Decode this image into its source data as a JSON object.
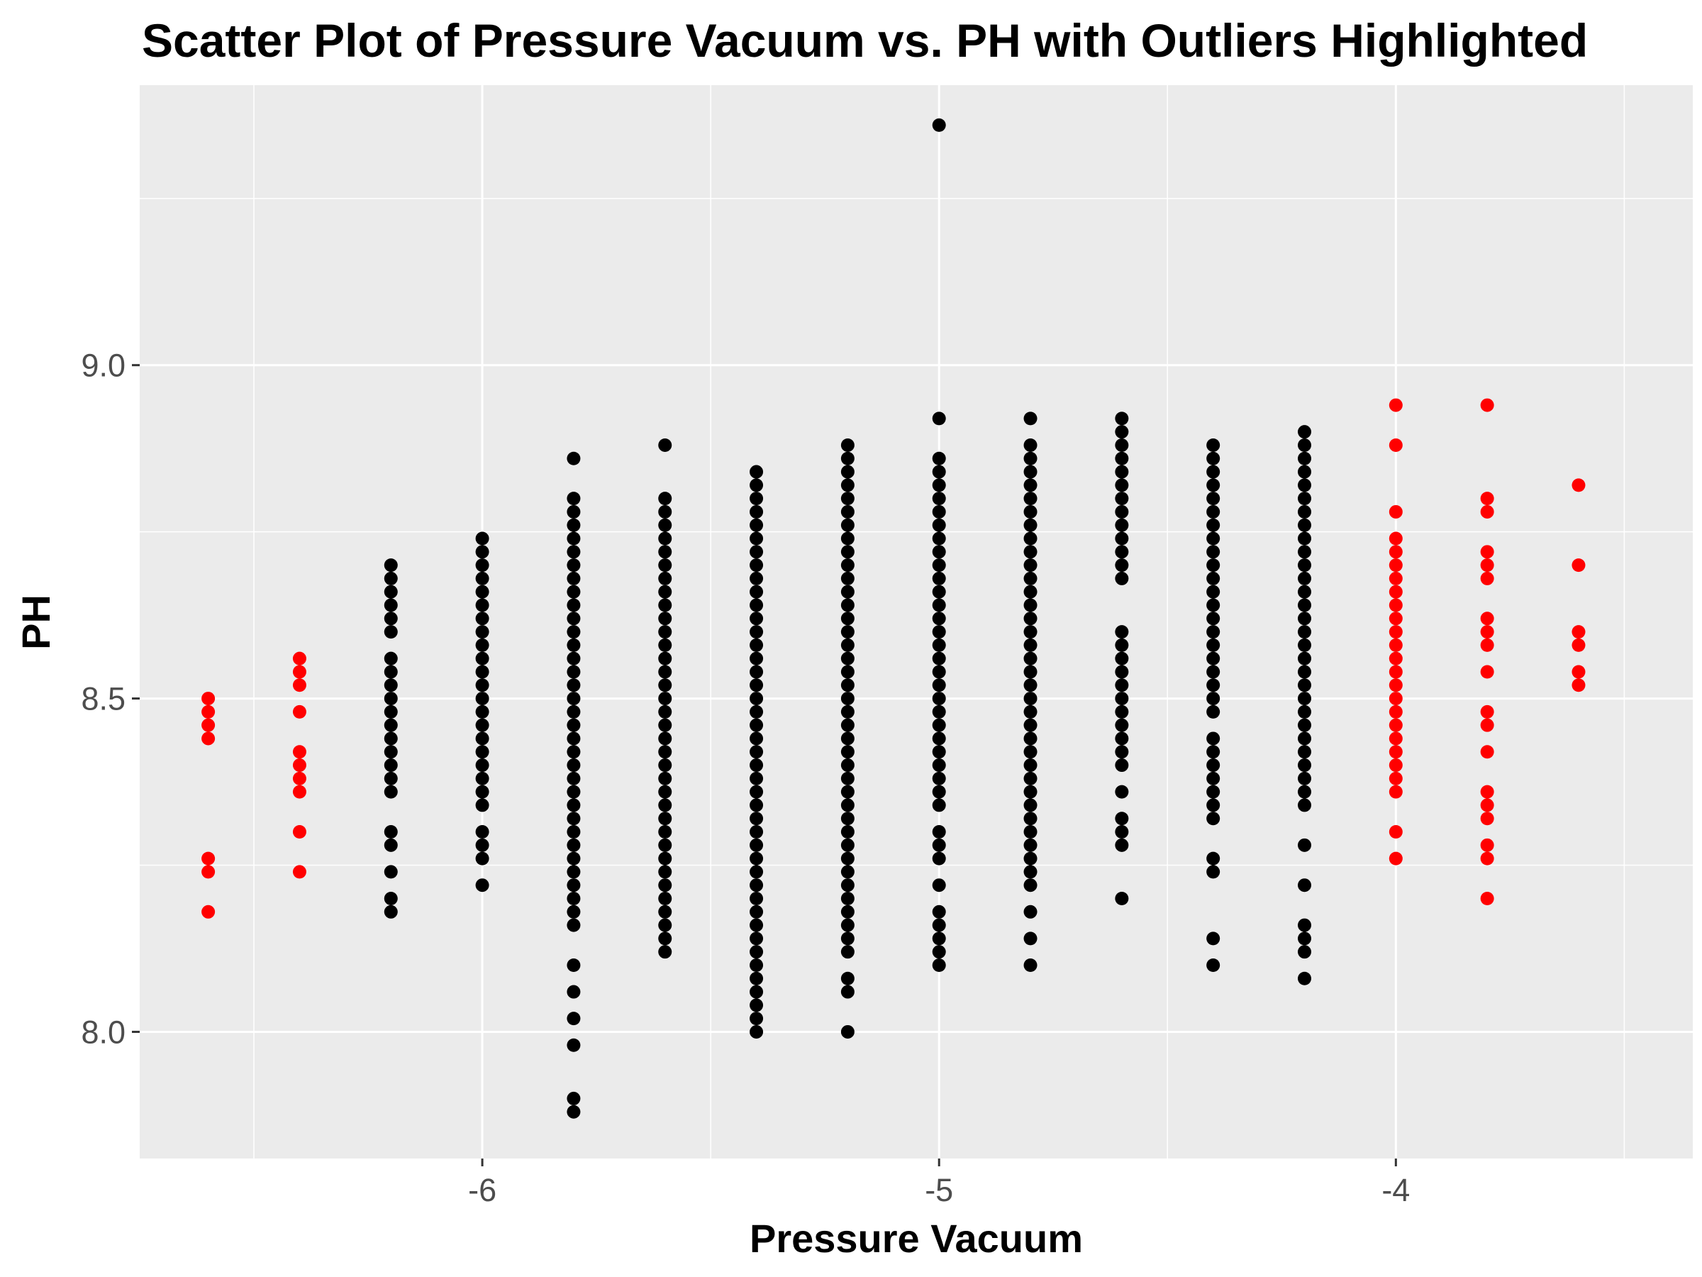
{
  "colors": {
    "panel": "#ebebeb",
    "grid": "#ffffff",
    "normal": "#000000",
    "outlier": "#ff0000",
    "tick": "#333333"
  },
  "chart_data": {
    "type": "scatter",
    "title": "Scatter Plot of Pressure Vacuum vs. PH with Outliers Highlighted",
    "xlabel": "Pressure Vacuum",
    "ylabel": "PH",
    "xlim": [
      -6.75,
      -3.35
    ],
    "ylim": [
      7.81,
      9.42
    ],
    "grid": true,
    "legend": "none",
    "x_ticks": [
      -6,
      -5,
      -4
    ],
    "x_tick_labels": [
      "-6",
      "-5",
      "-4"
    ],
    "y_ticks": [
      8.0,
      8.5,
      9.0
    ],
    "y_tick_labels": [
      "8.0",
      "8.5",
      "9.0"
    ],
    "series": [
      {
        "name": "",
        "outlier": false,
        "columns": [
          {
            "x": -6.2,
            "y": [
              8.18,
              8.2,
              8.24,
              8.28,
              8.3,
              8.36,
              8.38,
              8.4,
              8.42,
              8.44,
              8.46,
              8.48,
              8.5,
              8.52,
              8.54,
              8.56,
              8.6,
              8.62,
              8.64,
              8.66,
              8.68,
              8.7
            ]
          },
          {
            "x": -6.0,
            "y": [
              8.22,
              8.26,
              8.28,
              8.3,
              8.34,
              8.36,
              8.38,
              8.4,
              8.42,
              8.44,
              8.46,
              8.48,
              8.5,
              8.52,
              8.54,
              8.56,
              8.58,
              8.6,
              8.62,
              8.64,
              8.66,
              8.68,
              8.7,
              8.72,
              8.74
            ]
          },
          {
            "x": -5.8,
            "y": [
              7.88,
              7.9,
              7.98,
              8.02,
              8.06,
              8.1,
              8.16,
              8.18,
              8.2,
              8.22,
              8.24,
              8.26,
              8.28,
              8.3,
              8.32,
              8.34,
              8.36,
              8.38,
              8.4,
              8.42,
              8.44,
              8.46,
              8.48,
              8.5,
              8.52,
              8.54,
              8.56,
              8.58,
              8.6,
              8.62,
              8.64,
              8.66,
              8.68,
              8.7,
              8.72,
              8.74,
              8.76,
              8.78,
              8.8,
              8.86
            ]
          },
          {
            "x": -5.6,
            "y": [
              8.12,
              8.14,
              8.16,
              8.18,
              8.2,
              8.22,
              8.24,
              8.26,
              8.28,
              8.3,
              8.32,
              8.34,
              8.36,
              8.38,
              8.4,
              8.42,
              8.44,
              8.46,
              8.48,
              8.5,
              8.52,
              8.54,
              8.56,
              8.58,
              8.6,
              8.62,
              8.64,
              8.66,
              8.68,
              8.7,
              8.72,
              8.74,
              8.76,
              8.78,
              8.8,
              8.88
            ]
          },
          {
            "x": -5.4,
            "y": [
              8.0,
              8.02,
              8.04,
              8.06,
              8.08,
              8.1,
              8.12,
              8.14,
              8.16,
              8.18,
              8.2,
              8.22,
              8.24,
              8.26,
              8.28,
              8.3,
              8.32,
              8.34,
              8.36,
              8.38,
              8.4,
              8.42,
              8.44,
              8.46,
              8.48,
              8.5,
              8.52,
              8.54,
              8.56,
              8.58,
              8.6,
              8.62,
              8.64,
              8.66,
              8.68,
              8.7,
              8.72,
              8.74,
              8.76,
              8.78,
              8.8,
              8.82,
              8.84
            ]
          },
          {
            "x": -5.2,
            "y": [
              8.0,
              8.06,
              8.08,
              8.12,
              8.14,
              8.16,
              8.18,
              8.2,
              8.22,
              8.24,
              8.26,
              8.28,
              8.3,
              8.32,
              8.34,
              8.36,
              8.38,
              8.4,
              8.42,
              8.44,
              8.46,
              8.48,
              8.5,
              8.52,
              8.54,
              8.56,
              8.58,
              8.6,
              8.62,
              8.64,
              8.66,
              8.68,
              8.7,
              8.72,
              8.74,
              8.76,
              8.78,
              8.8,
              8.82,
              8.84,
              8.86,
              8.88
            ]
          },
          {
            "x": -5.0,
            "y": [
              8.1,
              8.12,
              8.14,
              8.16,
              8.18,
              8.22,
              8.26,
              8.28,
              8.3,
              8.34,
              8.36,
              8.38,
              8.4,
              8.42,
              8.44,
              8.46,
              8.48,
              8.5,
              8.52,
              8.54,
              8.56,
              8.58,
              8.6,
              8.62,
              8.64,
              8.66,
              8.68,
              8.7,
              8.72,
              8.74,
              8.76,
              8.78,
              8.8,
              8.82,
              8.84,
              8.86,
              8.92,
              9.36
            ]
          },
          {
            "x": -4.8,
            "y": [
              8.1,
              8.14,
              8.18,
              8.22,
              8.24,
              8.26,
              8.28,
              8.3,
              8.32,
              8.34,
              8.36,
              8.38,
              8.4,
              8.42,
              8.44,
              8.46,
              8.48,
              8.5,
              8.52,
              8.54,
              8.56,
              8.58,
              8.6,
              8.62,
              8.64,
              8.66,
              8.68,
              8.7,
              8.72,
              8.74,
              8.76,
              8.78,
              8.8,
              8.82,
              8.84,
              8.86,
              8.88,
              8.92
            ]
          },
          {
            "x": -4.6,
            "y": [
              8.2,
              8.28,
              8.3,
              8.32,
              8.36,
              8.4,
              8.42,
              8.44,
              8.46,
              8.48,
              8.5,
              8.52,
              8.54,
              8.56,
              8.58,
              8.6,
              8.68,
              8.7,
              8.72,
              8.74,
              8.76,
              8.78,
              8.8,
              8.82,
              8.84,
              8.86,
              8.88,
              8.9,
              8.92
            ]
          },
          {
            "x": -4.4,
            "y": [
              8.1,
              8.14,
              8.24,
              8.26,
              8.32,
              8.34,
              8.36,
              8.38,
              8.4,
              8.42,
              8.44,
              8.48,
              8.5,
              8.52,
              8.54,
              8.56,
              8.58,
              8.6,
              8.62,
              8.64,
              8.66,
              8.68,
              8.7,
              8.72,
              8.74,
              8.76,
              8.78,
              8.8,
              8.82,
              8.84,
              8.86,
              8.88
            ]
          },
          {
            "x": -4.2,
            "y": [
              8.08,
              8.12,
              8.14,
              8.16,
              8.22,
              8.28,
              8.34,
              8.36,
              8.38,
              8.4,
              8.42,
              8.44,
              8.46,
              8.48,
              8.5,
              8.52,
              8.54,
              8.56,
              8.58,
              8.6,
              8.62,
              8.64,
              8.66,
              8.68,
              8.7,
              8.72,
              8.74,
              8.76,
              8.78,
              8.8,
              8.82,
              8.84,
              8.86,
              8.88,
              8.9
            ]
          }
        ]
      },
      {
        "name": "",
        "outlier": true,
        "columns": [
          {
            "x": -6.6,
            "y": [
              8.18,
              8.24,
              8.26,
              8.44,
              8.46,
              8.48,
              8.5
            ]
          },
          {
            "x": -6.4,
            "y": [
              8.24,
              8.3,
              8.36,
              8.38,
              8.4,
              8.42,
              8.48,
              8.52,
              8.54,
              8.56
            ]
          },
          {
            "x": -4.0,
            "y": [
              8.26,
              8.3,
              8.36,
              8.38,
              8.4,
              8.42,
              8.44,
              8.46,
              8.48,
              8.5,
              8.52,
              8.54,
              8.56,
              8.58,
              8.6,
              8.62,
              8.64,
              8.66,
              8.68,
              8.7,
              8.72,
              8.74,
              8.78,
              8.88,
              8.94
            ]
          },
          {
            "x": -3.8,
            "y": [
              8.2,
              8.26,
              8.28,
              8.32,
              8.34,
              8.36,
              8.42,
              8.46,
              8.48,
              8.54,
              8.58,
              8.6,
              8.62,
              8.68,
              8.7,
              8.72,
              8.78,
              8.8,
              8.94
            ]
          },
          {
            "x": -3.6,
            "y": [
              8.52,
              8.54,
              8.58,
              8.6,
              8.7,
              8.82
            ]
          }
        ]
      }
    ]
  }
}
